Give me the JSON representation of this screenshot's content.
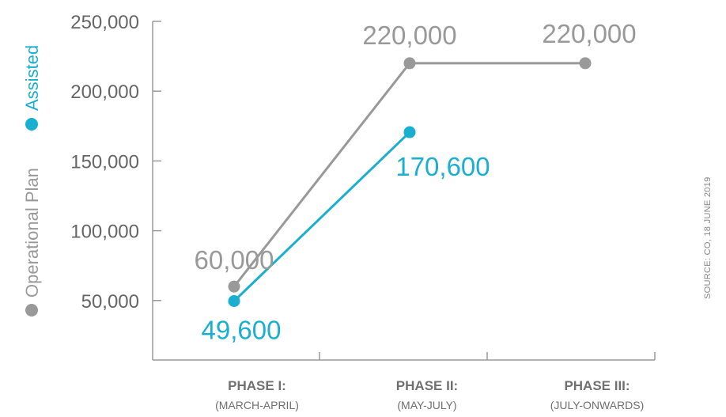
{
  "chart_data": {
    "type": "line",
    "categories": [
      {
        "title": "PHASE I:",
        "subtitle": "(MARCH-APRIL)"
      },
      {
        "title": "PHASE II:",
        "subtitle": "(MAY-JULY)"
      },
      {
        "title": "PHASE III:",
        "subtitle": "(JULY-ONWARDS)"
      }
    ],
    "series": [
      {
        "name": "Operational Plan",
        "color": "#999999",
        "values": [
          60000,
          220000,
          220000
        ],
        "labels": [
          "60,000",
          "220,000",
          "220,000"
        ]
      },
      {
        "name": "Assisted",
        "color": "#1AAFD0",
        "values": [
          49600,
          170600,
          null
        ],
        "labels": [
          "49,600",
          "170,600",
          ""
        ]
      }
    ],
    "yticks": [
      50000,
      100000,
      150000,
      200000,
      250000
    ],
    "ytick_labels": [
      "50,000",
      "100,000",
      "150,000",
      "200,000",
      "250,000"
    ],
    "ylim": [
      0,
      250000
    ],
    "grid": false,
    "legend_position": "left-vertical",
    "source_note": "SOURCE: CO, 18 JUNE 2019"
  }
}
